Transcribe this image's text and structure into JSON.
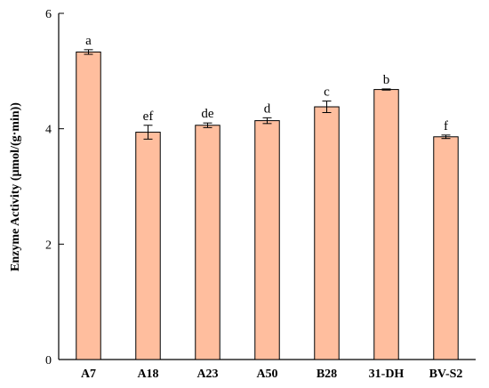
{
  "chart_data": {
    "type": "bar",
    "ylabel": "Enzyme Activity (μmol/(g·min))",
    "xlabel": "",
    "ylim": [
      0,
      6
    ],
    "yticks": [
      0,
      2,
      4,
      6
    ],
    "grid": false,
    "legend": "none",
    "categories": [
      "A7",
      "A18",
      "A23",
      "A50",
      "B28",
      "31-DH",
      "BV-S2"
    ],
    "values": [
      5.33,
      3.94,
      4.06,
      4.14,
      4.38,
      4.68,
      3.86
    ],
    "errors": [
      0.04,
      0.12,
      0.04,
      0.05,
      0.1,
      0.01,
      0.03
    ],
    "significance_labels": [
      "a",
      "ef",
      "de",
      "d",
      "c",
      "b",
      "f"
    ],
    "bar_color": "#FFBE9E"
  }
}
